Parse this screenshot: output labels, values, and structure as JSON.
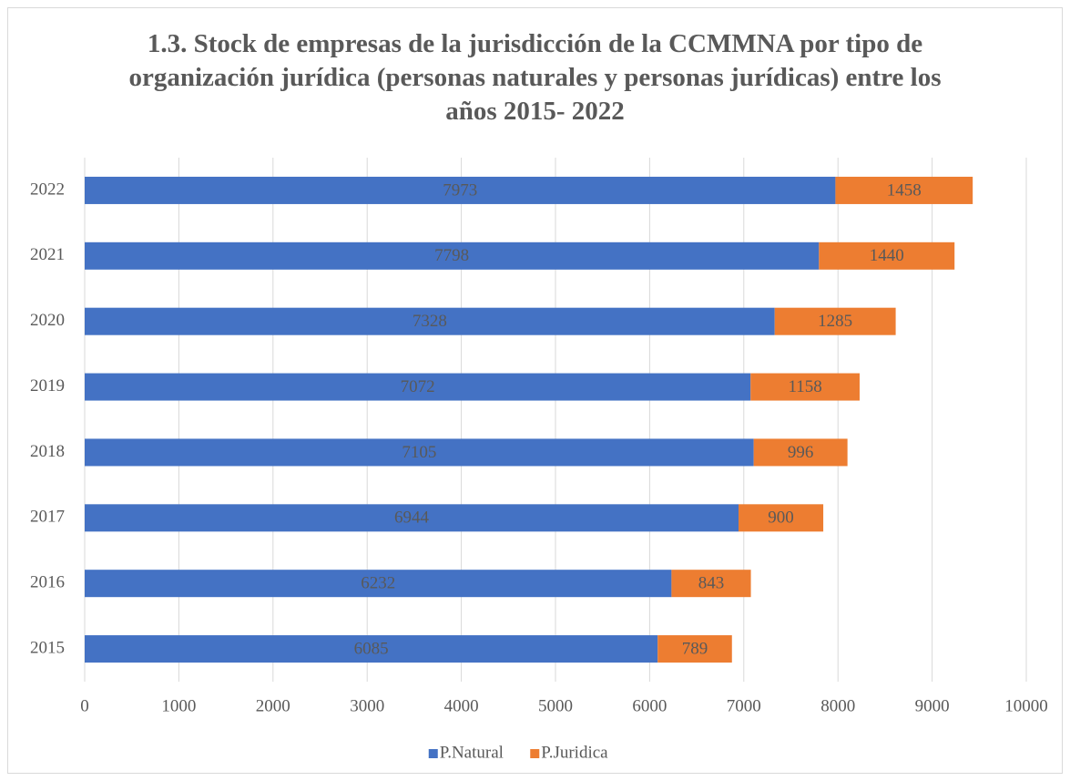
{
  "chart_data": {
    "type": "stacked_barh",
    "title": "1.3. Stock de empresas de la jurisdicción de la CCMMNA por tipo de organización jurídica (personas naturales y personas jurídicas) entre los años 2015- 2022",
    "categories": [
      "2015",
      "2016",
      "2017",
      "2018",
      "2019",
      "2020",
      "2021",
      "2022"
    ],
    "series": [
      {
        "name": "P.Natural",
        "color": "#4472c4",
        "values": [
          6085,
          6232,
          6944,
          7105,
          7072,
          7328,
          7798,
          7973
        ]
      },
      {
        "name": "P.Juridica",
        "color": "#ed7d31",
        "values": [
          789,
          843,
          900,
          996,
          1158,
          1285,
          1440,
          1458
        ]
      }
    ],
    "xlim": [
      0,
      10000
    ],
    "xticks": [
      0,
      1000,
      2000,
      3000,
      4000,
      5000,
      6000,
      7000,
      8000,
      9000,
      10000
    ],
    "grid": true,
    "legend": "bottom"
  }
}
